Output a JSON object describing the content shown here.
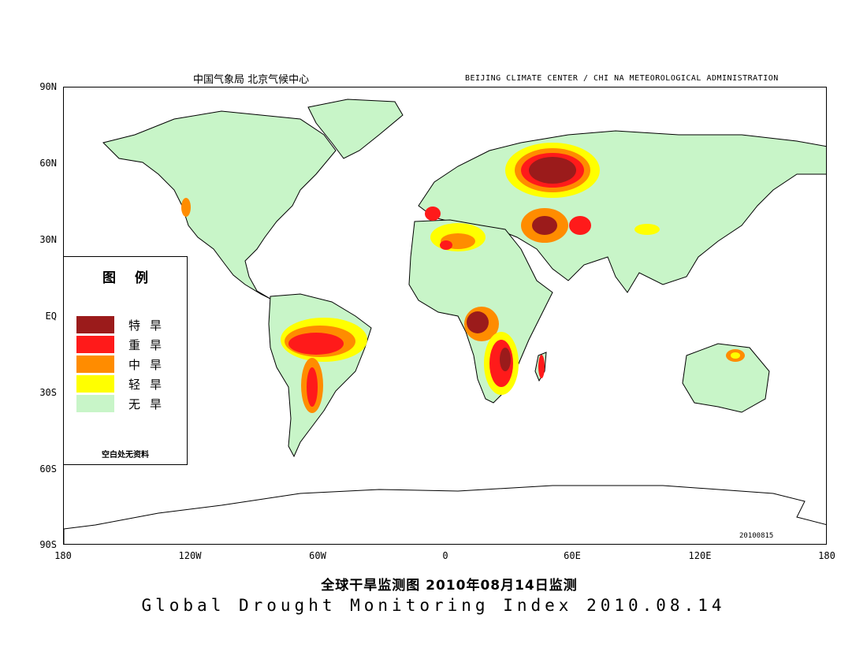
{
  "header": {
    "left": "中国气象局  北京气候中心",
    "right": "BEIJING CLIMATE CENTER / CHI NA METEOROLOGICAL ADMINISTRATION"
  },
  "axes": {
    "y_labels": [
      "90N",
      "60N",
      "30N",
      "EQ",
      "30S",
      "60S",
      "90S"
    ],
    "x_labels": [
      "180",
      "120W",
      "60W",
      "0",
      "60E",
      "120E",
      "180"
    ]
  },
  "legend": {
    "title": "图例",
    "items": [
      {
        "label": "特旱",
        "color": "#9b1b1b"
      },
      {
        "label": "重旱",
        "color": "#ff1a1a"
      },
      {
        "label": "中旱",
        "color": "#ff8c00"
      },
      {
        "label": "轻旱",
        "color": "#ffff00"
      },
      {
        "label": "无旱",
        "color": "#c8f5c8"
      }
    ],
    "note": "空白处无资料"
  },
  "date_stamp": "20100815",
  "title_cn": "全球干旱监测图    2010年08月14日监测",
  "title_en": "Global Drought Monitoring Index  2010.08.14",
  "colors": {
    "land": "#c8f5c8",
    "extreme": "#9b1b1b",
    "severe": "#ff1a1a",
    "moderate": "#ff8c00",
    "light": "#ffff00"
  }
}
